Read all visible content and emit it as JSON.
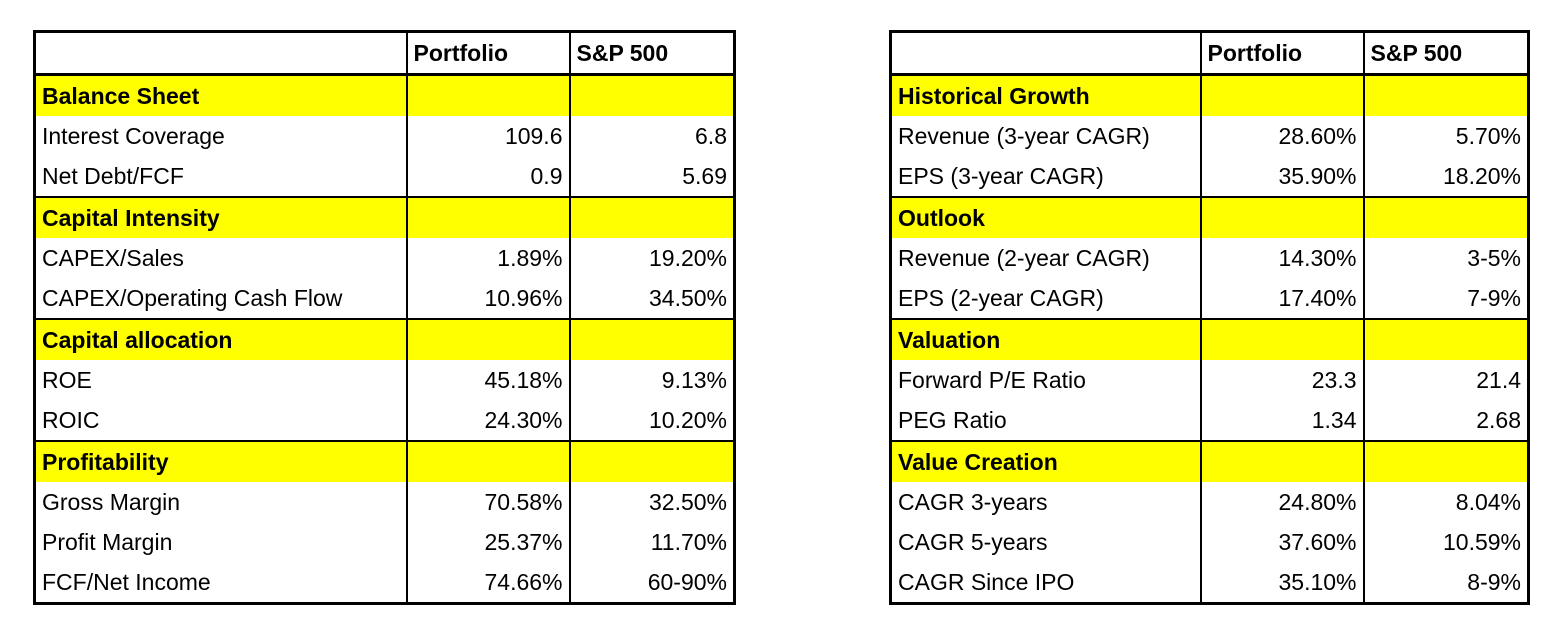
{
  "columns": {
    "name": "",
    "portfolio": "Portfolio",
    "benchmark": "S&P 500"
  },
  "left_table": {
    "sections": [
      {
        "title": "Balance Sheet",
        "rows": [
          {
            "label": "Interest Coverage",
            "portfolio": "109.6",
            "benchmark": "6.8"
          },
          {
            "label": "Net Debt/FCF",
            "portfolio": "0.9",
            "benchmark": "5.69"
          }
        ]
      },
      {
        "title": "Capital Intensity",
        "rows": [
          {
            "label": "CAPEX/Sales",
            "portfolio": "1.89%",
            "benchmark": "19.20%"
          },
          {
            "label": "CAPEX/Operating Cash Flow",
            "portfolio": "10.96%",
            "benchmark": "34.50%"
          }
        ]
      },
      {
        "title": "Capital allocation",
        "rows": [
          {
            "label": "ROE",
            "portfolio": "45.18%",
            "benchmark": "9.13%"
          },
          {
            "label": "ROIC",
            "portfolio": "24.30%",
            "benchmark": "10.20%"
          }
        ]
      },
      {
        "title": "Profitability",
        "rows": [
          {
            "label": "Gross Margin",
            "portfolio": "70.58%",
            "benchmark": "32.50%"
          },
          {
            "label": "Profit Margin",
            "portfolio": "25.37%",
            "benchmark": "11.70%"
          },
          {
            "label": "FCF/Net Income",
            "portfolio": "74.66%",
            "benchmark": "60-90%"
          }
        ]
      }
    ]
  },
  "right_table": {
    "sections": [
      {
        "title": "Historical Growth",
        "rows": [
          {
            "label": "Revenue (3-year CAGR)",
            "portfolio": "28.60%",
            "benchmark": "5.70%"
          },
          {
            "label": "EPS (3-year CAGR)",
            "portfolio": "35.90%",
            "benchmark": "18.20%"
          }
        ]
      },
      {
        "title": "Outlook",
        "rows": [
          {
            "label": "Revenue (2-year CAGR)",
            "portfolio": "14.30%",
            "benchmark": "3-5%"
          },
          {
            "label": "EPS (2-year CAGR)",
            "portfolio": "17.40%",
            "benchmark": "7-9%"
          }
        ]
      },
      {
        "title": "Valuation",
        "rows": [
          {
            "label": "Forward  P/E Ratio",
            "portfolio": "23.3",
            "benchmark": "21.4"
          },
          {
            "label": "PEG Ratio",
            "portfolio": "1.34",
            "benchmark": "2.68"
          }
        ]
      },
      {
        "title": "Value Creation",
        "rows": [
          {
            "label": "CAGR 3-years",
            "portfolio": "24.80%",
            "benchmark": "8.04%"
          },
          {
            "label": "CAGR 5-years",
            "portfolio": "37.60%",
            "benchmark": "10.59%"
          },
          {
            "label": "CAGR Since IPO",
            "portfolio": "35.10%",
            "benchmark": "8-9%"
          }
        ]
      }
    ]
  },
  "colors": {
    "section_highlight": "#ffff00",
    "border": "#000000",
    "background": "#ffffff"
  }
}
